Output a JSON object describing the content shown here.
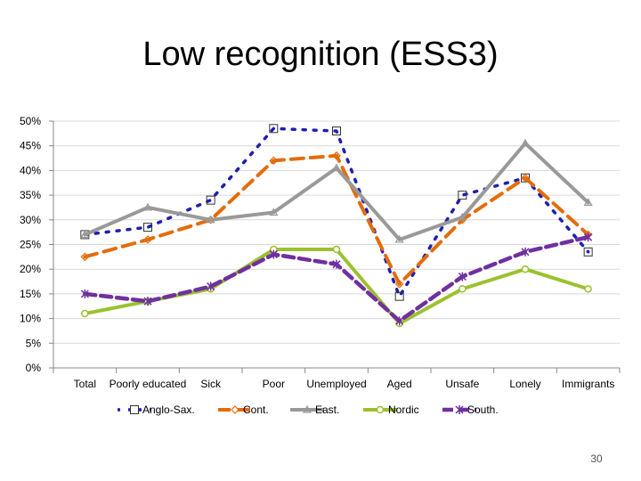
{
  "slide": {
    "title": "Low recognition (ESS3)",
    "page_number": "30"
  },
  "chart_data": {
    "type": "line",
    "title": "Low recognition (ESS3)",
    "xlabel": "",
    "ylabel": "",
    "ylim": [
      0,
      50
    ],
    "yticks": [
      "0%",
      "5%",
      "10%",
      "15%",
      "20%",
      "25%",
      "30%",
      "35%",
      "40%",
      "45%",
      "50%"
    ],
    "categories": [
      "Total",
      "Poorly educated",
      "Sick",
      "Poor",
      "Unemployed",
      "Aged",
      "Unsafe",
      "Lonely",
      "Immigrants"
    ],
    "legend_position": "bottom",
    "series": [
      {
        "name": "Anglo-Sax.",
        "color": "#1f1fb0",
        "dash": "3 9",
        "marker": "square",
        "values": [
          27,
          28.5,
          34,
          48.5,
          48,
          14.5,
          35,
          38.5,
          23.5
        ]
      },
      {
        "name": "Cont.",
        "color": "#e46c0a",
        "dash": "14 8",
        "marker": "diamond",
        "values": [
          22.5,
          26,
          30,
          42,
          43,
          17,
          30,
          38.5,
          27
        ]
      },
      {
        "name": "East.",
        "color": "#999999",
        "dash": "",
        "marker": "triangle",
        "values": [
          27,
          32.5,
          30,
          31.5,
          40.5,
          26,
          30.5,
          45.5,
          33.5
        ]
      },
      {
        "name": "Nordic",
        "color": "#9bc12f",
        "dash": "",
        "marker": "circle",
        "values": [
          11,
          13.5,
          16,
          24,
          24,
          9,
          16,
          20,
          16
        ]
      },
      {
        "name": "South.",
        "color": "#7030a0",
        "dash": "12 6",
        "marker": "star",
        "values": [
          15,
          13.5,
          16.5,
          23,
          21,
          9.5,
          18.5,
          23.5,
          26.5
        ]
      }
    ]
  }
}
